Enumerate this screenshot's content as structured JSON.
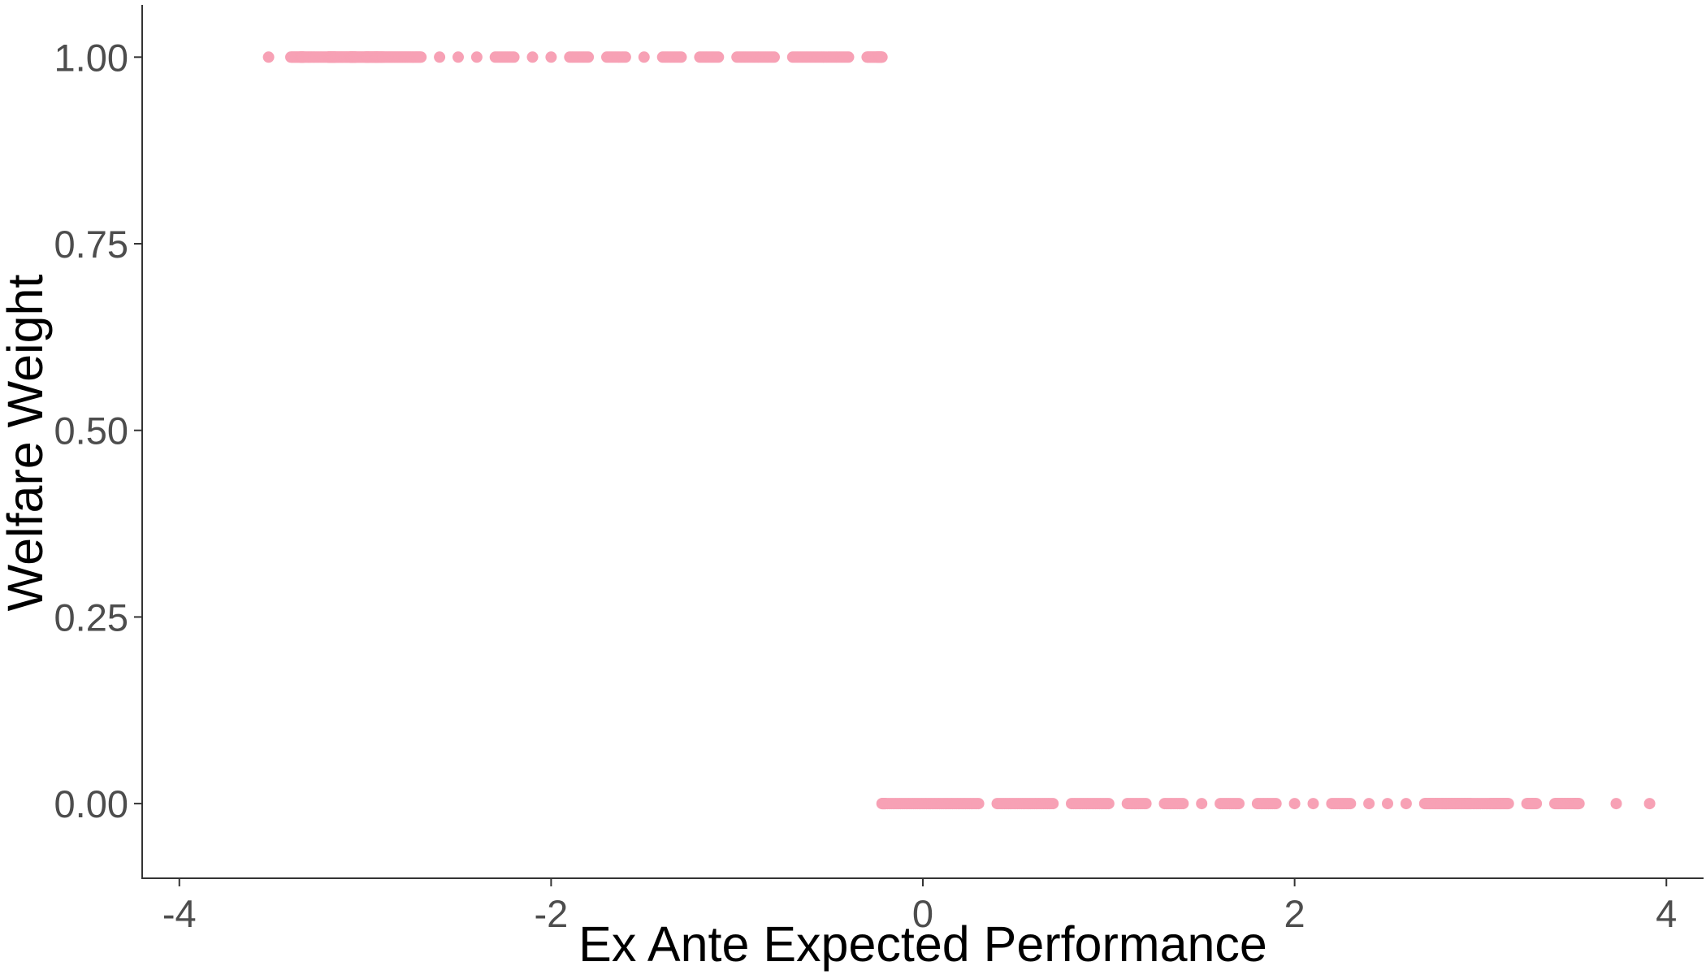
{
  "chart_data": {
    "type": "scatter",
    "title": "",
    "xlabel": "Ex Ante Expected Performance",
    "ylabel": "Welfare Weight",
    "xlim": [
      -4.2,
      4.2
    ],
    "ylim": [
      -0.1,
      1.07
    ],
    "x_ticks": [
      -4,
      -2,
      0,
      2,
      4
    ],
    "x_tick_labels": [
      "-4",
      "-2",
      "0",
      "2",
      "4"
    ],
    "y_ticks": [
      0,
      0.25,
      0.5,
      0.75,
      1.0
    ],
    "y_tick_labels": [
      "0.00",
      "0.25",
      "0.50",
      "0.75",
      "1.00"
    ],
    "grid": false,
    "point_color": "#f7a1b5",
    "threshold": -0.22,
    "series": [
      {
        "values_at_y": 1.0,
        "x": [
          -3.52,
          -3.4,
          -3.35,
          -3.33,
          -3.27,
          -3.2,
          -3.18,
          -3.16,
          -3.12,
          -3.08,
          -3.07,
          -3.05,
          -3.0,
          -2.98,
          -2.95,
          -2.93,
          -2.9,
          -2.85,
          -2.8,
          -2.75,
          -2.7,
          -2.6,
          -2.5,
          -2.4,
          -2.3,
          -2.2,
          -2.1,
          -2.0,
          -1.9,
          -1.8,
          -1.7,
          -1.6,
          -1.5,
          -1.4,
          -1.3,
          -1.2,
          -1.1,
          -1.0,
          -0.9,
          -0.8,
          -0.7,
          -0.6,
          -0.5,
          -0.4,
          -0.3,
          -0.25,
          -0.22
        ]
      },
      {
        "values_at_y": 0.0,
        "x": [
          -0.22,
          -0.2,
          -0.1,
          0.0,
          0.1,
          0.2,
          0.3,
          0.4,
          0.5,
          0.6,
          0.7,
          0.8,
          0.9,
          1.0,
          1.1,
          1.2,
          1.3,
          1.4,
          1.5,
          1.6,
          1.7,
          1.8,
          1.9,
          2.0,
          2.1,
          2.2,
          2.3,
          2.4,
          2.5,
          2.6,
          2.7,
          2.75,
          2.8,
          2.85,
          2.9,
          2.95,
          3.05,
          3.1,
          3.15,
          3.25,
          3.3,
          3.4,
          3.45,
          3.5,
          3.53,
          3.73,
          3.91
        ]
      }
    ]
  }
}
